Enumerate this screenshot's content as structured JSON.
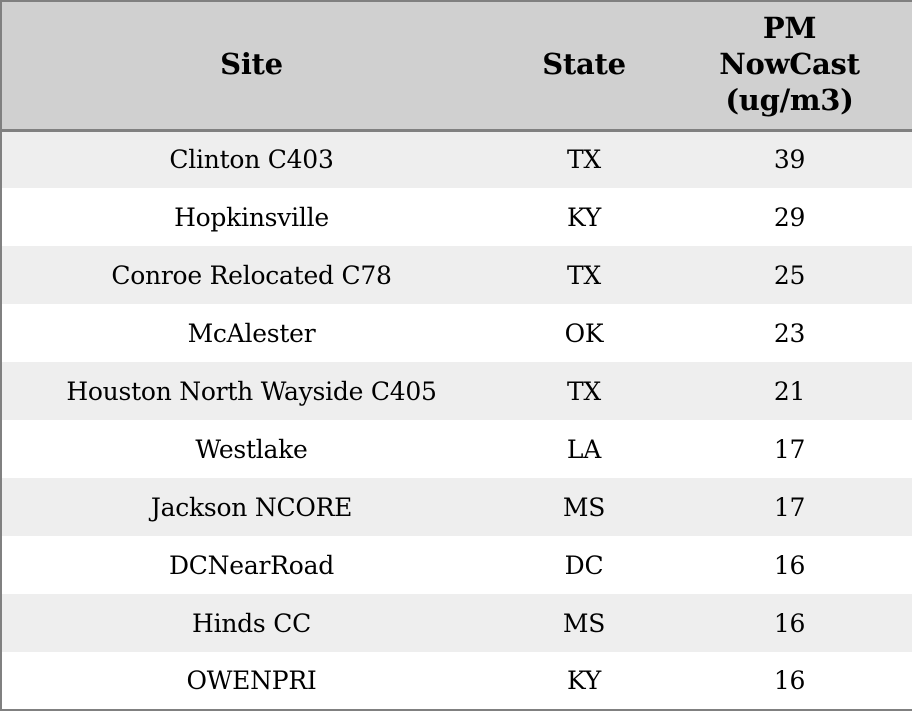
{
  "colors": {
    "border": "#808080",
    "header_bg": "#d0d0d0",
    "stripe": "#eeeeee",
    "row_bg": "#ffffff",
    "text": "#000000"
  },
  "table": {
    "columns": [
      {
        "id": "site",
        "label": "Site"
      },
      {
        "id": "state",
        "label": "State"
      },
      {
        "id": "pm_nowcast",
        "label": "PM\nNowCast\n(ug/m3)"
      }
    ],
    "rows": [
      {
        "site": "Clinton C403",
        "state": "TX",
        "pm_nowcast": "39"
      },
      {
        "site": "Hopkinsville",
        "state": "KY",
        "pm_nowcast": "29"
      },
      {
        "site": "Conroe Relocated C78",
        "state": "TX",
        "pm_nowcast": "25"
      },
      {
        "site": "McAlester",
        "state": "OK",
        "pm_nowcast": "23"
      },
      {
        "site": "Houston North Wayside C405",
        "state": "TX",
        "pm_nowcast": "21"
      },
      {
        "site": "Westlake",
        "state": "LA",
        "pm_nowcast": "17"
      },
      {
        "site": "Jackson NCORE",
        "state": "MS",
        "pm_nowcast": "17"
      },
      {
        "site": "DCNearRoad",
        "state": "DC",
        "pm_nowcast": "16"
      },
      {
        "site": "Hinds CC",
        "state": "MS",
        "pm_nowcast": "16"
      },
      {
        "site": "OWENPRI",
        "state": "KY",
        "pm_nowcast": "16"
      }
    ]
  },
  "chart_data": {
    "type": "table",
    "title": "",
    "columns": [
      "Site",
      "State",
      "PM NowCast (ug/m3)"
    ],
    "rows": [
      [
        "Clinton C403",
        "TX",
        39
      ],
      [
        "Hopkinsville",
        "KY",
        29
      ],
      [
        "Conroe Relocated C78",
        "TX",
        25
      ],
      [
        "McAlester",
        "OK",
        23
      ],
      [
        "Houston North Wayside C405",
        "TX",
        21
      ],
      [
        "Westlake",
        "LA",
        17
      ],
      [
        "Jackson NCORE",
        "MS",
        17
      ],
      [
        "DCNearRoad",
        "DC",
        16
      ],
      [
        "Hinds CC",
        "MS",
        16
      ],
      [
        "OWENPRI",
        "KY",
        16
      ]
    ],
    "layout_hints": {
      "zebra_striping": true,
      "header_background": "#d0d0d0",
      "stripe_background": "#eeeeee",
      "alignment": "center",
      "sorted_by": "PM NowCast (ug/m3) descending"
    }
  }
}
